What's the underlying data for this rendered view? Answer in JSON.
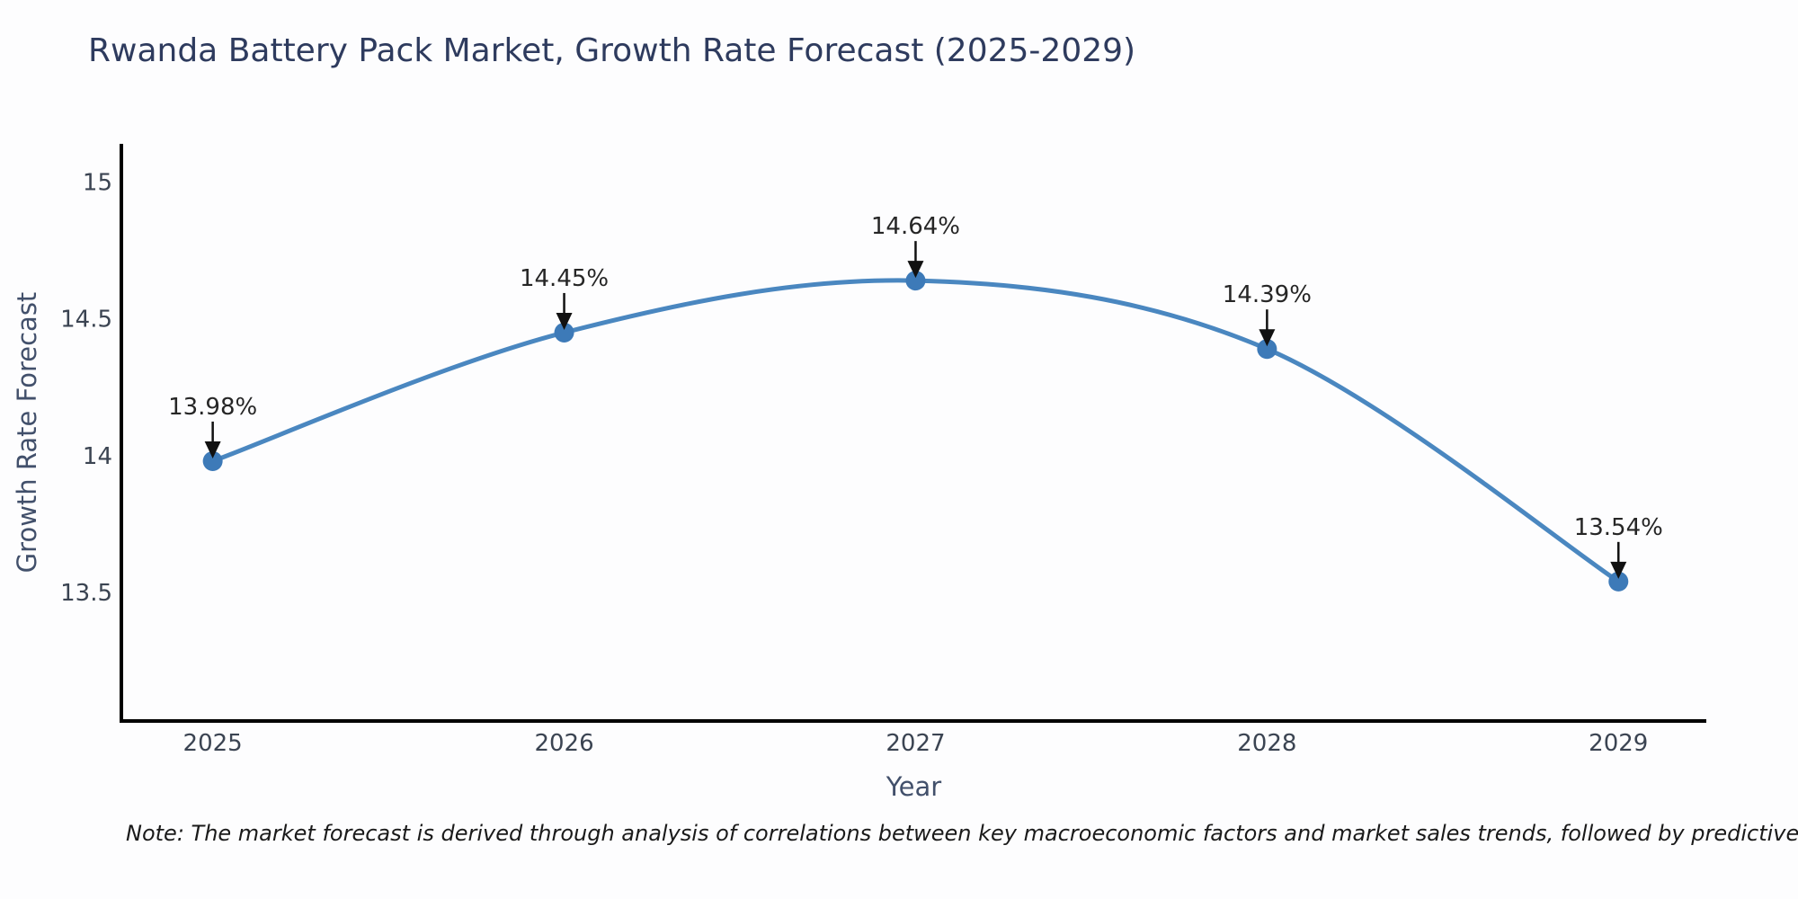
{
  "page": {
    "title": "Rwanda Battery Pack Market, Growth Rate Forecast (2025-2029)",
    "note": "Note: The market forecast is derived through analysis of correlations between key macroeconomic factors and market sales trends, followed by predictive modeling to project future sal"
  },
  "chart_data": {
    "type": "line",
    "title": "Rwanda Battery Pack Market, Growth Rate Forecast (2025-2029)",
    "xlabel": "Year",
    "ylabel": "Growth Rate Forecast",
    "categories": [
      2025,
      2026,
      2027,
      2028,
      2029
    ],
    "values": [
      13.98,
      14.45,
      14.64,
      14.39,
      13.54
    ],
    "point_labels": [
      "13.98%",
      "14.45%",
      "14.64%",
      "14.39%",
      "13.54%"
    ],
    "xtick_labels": [
      "2025",
      "2026",
      "2027",
      "2028",
      "2029"
    ],
    "yticks": [
      13.5,
      14,
      14.5,
      15
    ],
    "ytick_labels": [
      "13.5",
      "14",
      "14.5",
      "15"
    ],
    "xlim": [
      2024.74,
      2029.25
    ],
    "ylim": [
      13.03,
      15.14
    ],
    "grid": false,
    "legend": "none",
    "line_smooth": true,
    "annotations_arrow": "down-to-point",
    "colors": {
      "line": "#4a87c0",
      "marker": "#3d7ab8",
      "axis": "#000000",
      "tick_label": "#3b4452",
      "axis_title": "#42506b",
      "title": "#2e3b5e",
      "annotation_text": "#262626",
      "annotation_arrow": "#111111",
      "background": "#fdfdfe"
    }
  }
}
